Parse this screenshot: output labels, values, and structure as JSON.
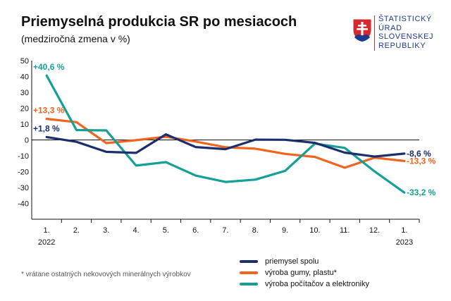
{
  "header": {
    "title": "Priemyselná produkcia SR po mesiacoch",
    "subtitle": "(medziročná zmena v %)"
  },
  "logo": {
    "lines": [
      "ŠTATISTICKÝ",
      "ÚRAD",
      "SLOVENSKEJ",
      "REPUBLIKY"
    ]
  },
  "footnote": "* vrátane ostatných nekovových minerálnych výrobkov",
  "colors": {
    "priemysel": "#1b2f6e",
    "guma": "#f0641e",
    "pocitace": "#14a096",
    "axis": "#111111",
    "grid": "#d9d9d9"
  },
  "chart_data": {
    "type": "line",
    "title": "Priemyselná produkcia SR po mesiacoch",
    "subtitle": "(medziročná zmena v %)",
    "categories": [
      "1.",
      "2.",
      "3.",
      "4.",
      "5.",
      "6.",
      "7.",
      "8.",
      "9.",
      "10.",
      "11.",
      "12.",
      "1."
    ],
    "year_labels": [
      {
        "index": 0,
        "label": "2022"
      },
      {
        "index": 12,
        "label": "2023"
      }
    ],
    "ylim": [
      -50,
      50
    ],
    "yticks": [
      50,
      40,
      30,
      20,
      10,
      0,
      -10,
      -20,
      -30,
      -40
    ],
    "grid": false,
    "legend_position": "bottom-right",
    "series": [
      {
        "name": "priemysel spolu",
        "color_key": "priemysel",
        "values": [
          1.8,
          -1.2,
          -7.5,
          -8.2,
          3.5,
          -4.5,
          -5.8,
          0.2,
          0.1,
          -1.8,
          -8.0,
          -10.5,
          -8.6
        ],
        "start_label": "+1,8 %",
        "end_label": "-8,6 %"
      },
      {
        "name": "výroba gumy, plastu*",
        "color_key": "guma",
        "values": [
          13.3,
          11.2,
          -2.0,
          -0.2,
          2.0,
          -1.0,
          -4.6,
          -5.5,
          -8.8,
          -10.7,
          -17.5,
          -11.2,
          -13.3
        ],
        "start_label": "+13,3 %",
        "end_label": "-13,3 %"
      },
      {
        "name": "výroba počítačov a elektroniky",
        "color_key": "pocitace",
        "values": [
          40.6,
          6.2,
          6.0,
          -16.2,
          -14.0,
          -22.5,
          -26.5,
          -25.0,
          -19.5,
          -2.3,
          -5.0,
          -19.8,
          -33.2
        ],
        "start_label": "+40,6 %",
        "end_label": "-33,2 %"
      }
    ]
  }
}
